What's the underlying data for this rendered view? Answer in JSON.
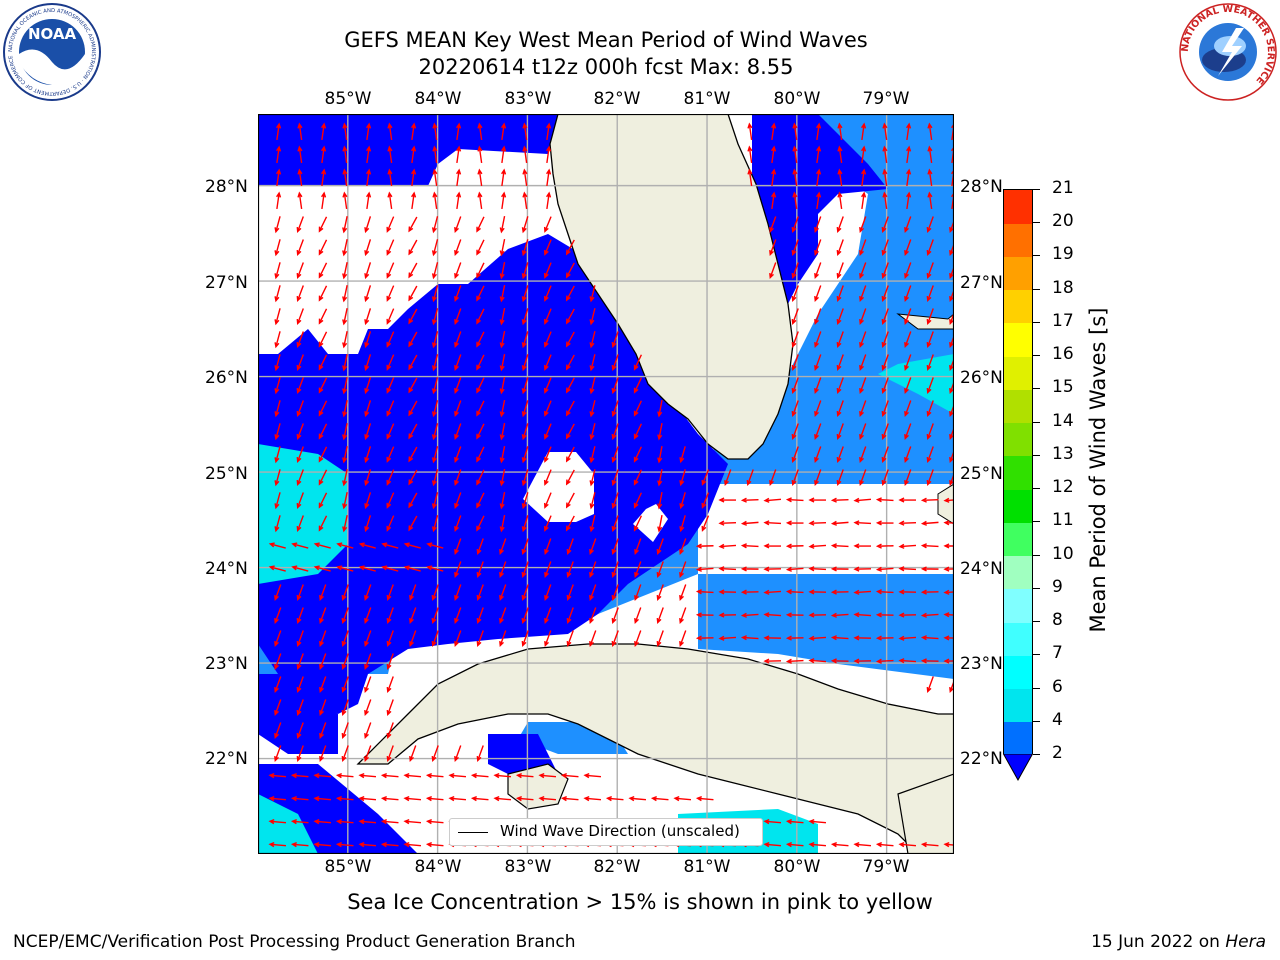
{
  "title": {
    "line1": "GEFS MEAN Key West Mean Period of Wind Waves",
    "line2": "20220614 t12z 000h fcst   Max: 8.55"
  },
  "logos": {
    "noaa_text": "NOAA",
    "noaa_ring": "NATIONAL OCEANIC AND ATMOSPHERIC ADMINISTRATION · U.S. DEPARTMENT OF COMMERCE",
    "nws_ring": "NATIONAL WEATHER SERVICE"
  },
  "map": {
    "lon_labels": [
      "85°W",
      "84°W",
      "83°W",
      "82°W",
      "81°W",
      "80°W",
      "79°W"
    ],
    "lat_labels": [
      "28°N",
      "27°N",
      "26°N",
      "25°N",
      "24°N",
      "23°N",
      "22°N"
    ],
    "lon_range": [
      -86.0,
      -78.25
    ],
    "lat_range": [
      21.0,
      28.75
    ],
    "legend": "Wind Wave Direction (unscaled)",
    "colors": {
      "land": "#efefdf",
      "blue": "#0000ff",
      "light_blue": "#1e90ff",
      "cyan": "#00e5ee",
      "arrow": "#ff0000",
      "grid": "#b0b0b0"
    }
  },
  "colorbar": {
    "label": "Mean Period of Wind Waves [s]",
    "ticks": [
      "2",
      "4",
      "6",
      "7",
      "8",
      "9",
      "10",
      "11",
      "12",
      "13",
      "14",
      "15",
      "16",
      "17",
      "18",
      "19",
      "20",
      "21"
    ],
    "colors": [
      "#0070ff",
      "#00e5ee",
      "#00ffff",
      "#40ffff",
      "#80ffff",
      "#a0ffc0",
      "#40ff60",
      "#00e000",
      "#30e000",
      "#80e000",
      "#b0e000",
      "#e0f000",
      "#ffff00",
      "#ffd000",
      "#ffa000",
      "#ff7000",
      "#ff3000",
      "#ff0000"
    ],
    "under_color": "#0000ff"
  },
  "sea_ice_note": "Sea Ice Concentration > 15% is shown in pink to yellow",
  "footer": {
    "left": "NCEP/EMC/Verification Post Processing Product Generation Branch",
    "right_prefix": "15 Jun 2022 on ",
    "right_host": "Hera"
  }
}
